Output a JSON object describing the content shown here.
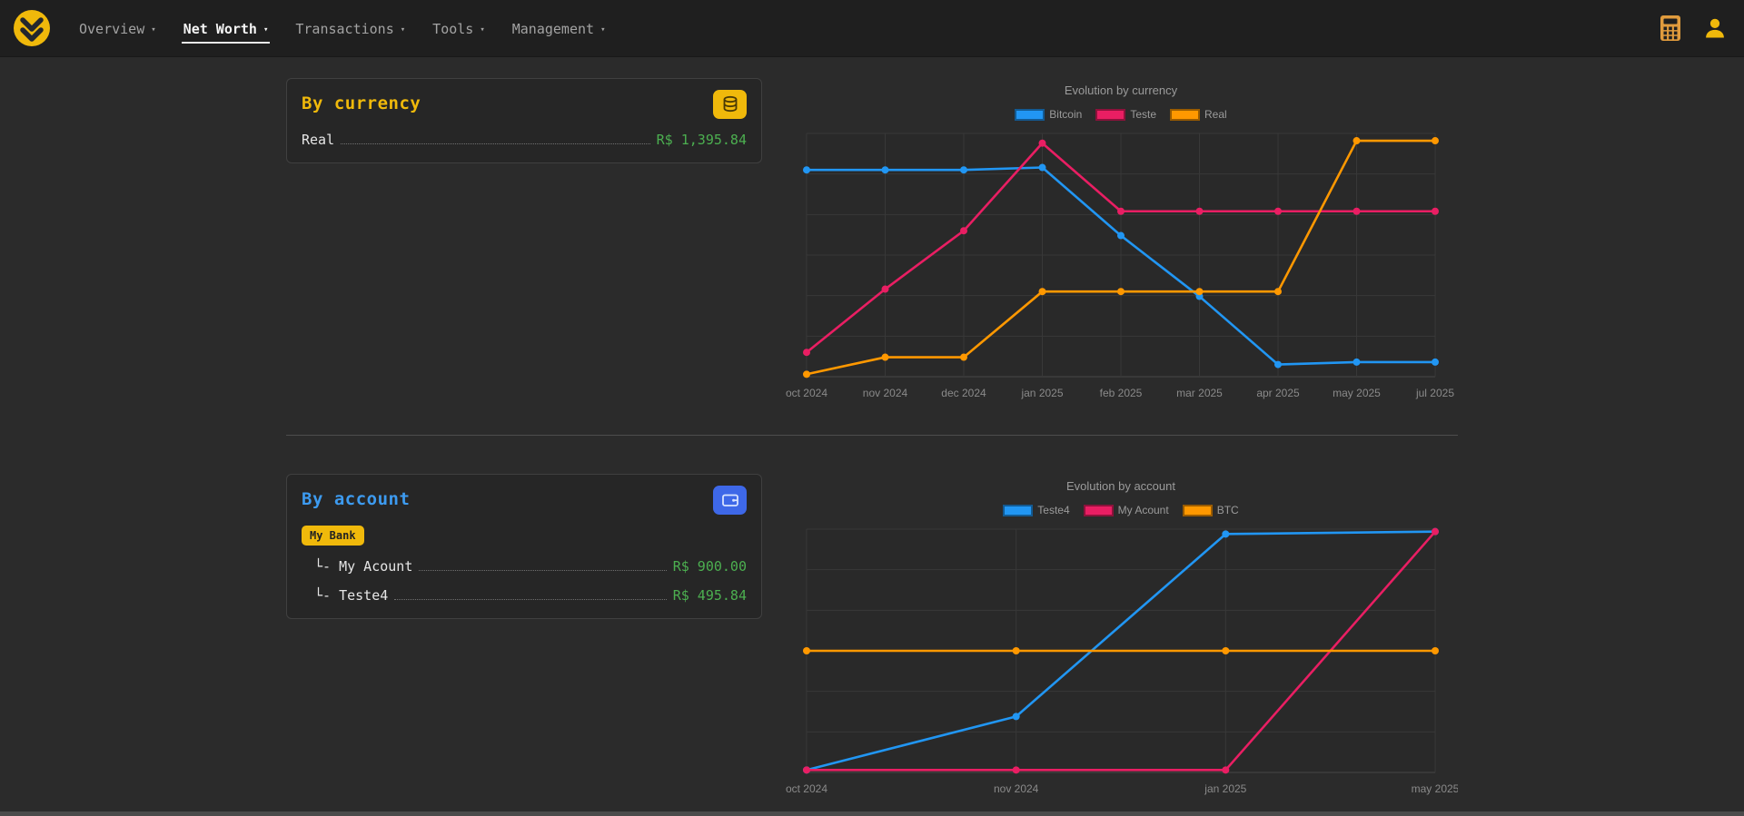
{
  "glyphs": {
    "caret": "▾"
  },
  "navbar": {
    "items": [
      {
        "label": "Overview",
        "active": false
      },
      {
        "label": "Net Worth",
        "active": true
      },
      {
        "label": "Transactions",
        "active": false
      },
      {
        "label": "Tools",
        "active": false
      },
      {
        "label": "Management",
        "active": false
      }
    ]
  },
  "cards": {
    "currency": {
      "title": "By currency",
      "icon": "coins-icon",
      "rows": [
        {
          "label": "Real",
          "value": "R$ 1,395.84"
        }
      ]
    },
    "account": {
      "title": "By account",
      "icon": "wallet-icon",
      "bank": "My Bank",
      "rows": [
        {
          "label": "└- My Acount",
          "value": "R$ 900.00"
        },
        {
          "label": "└- Teste4",
          "value": "R$ 495.84"
        }
      ]
    }
  },
  "chart_data": [
    {
      "type": "line",
      "title": "Evolution by currency",
      "x": [
        "oct 2024",
        "nov 2024",
        "dec 2024",
        "jan 2025",
        "feb 2025",
        "mar 2025",
        "apr 2025",
        "may 2025",
        "jul 2025"
      ],
      "series": [
        {
          "name": "Bitcoin",
          "color": "#2196f3",
          "values": [
            85,
            85,
            85,
            86,
            58,
            33,
            5,
            6,
            6
          ]
        },
        {
          "name": "Teste",
          "color": "#e91e63",
          "values": [
            10,
            36,
            60,
            96,
            68,
            68,
            68,
            68,
            68
          ]
        },
        {
          "name": "Real",
          "color": "#ff9800",
          "values": [
            1,
            8,
            8,
            35,
            35,
            35,
            35,
            97,
            97
          ]
        }
      ],
      "ylim": [
        0,
        100
      ],
      "y_ticks": [],
      "grid": true,
      "legend_position": "top"
    },
    {
      "type": "line",
      "title": "Evolution by account",
      "x": [
        "oct 2024",
        "nov 2024",
        "jan 2025",
        "may 2025"
      ],
      "series": [
        {
          "name": "Teste4",
          "color": "#2196f3",
          "values": [
            1,
            23,
            98,
            99
          ]
        },
        {
          "name": "My Acount",
          "color": "#e91e63",
          "values": [
            1,
            1,
            1,
            99
          ]
        },
        {
          "name": "BTC",
          "color": "#ff9800",
          "values": [
            50,
            50,
            50,
            50
          ]
        }
      ],
      "ylim": [
        0,
        100
      ],
      "y_ticks": [],
      "grid": true,
      "legend_position": "top"
    }
  ],
  "colors": {
    "accent_yellow": "#f0b90b",
    "accent_blue": "#3d9bf0",
    "value_green": "#4caf50",
    "bitcoin_blue": "#2196f3",
    "teste_pink": "#e91e63",
    "real_orange": "#ff9800",
    "navbar_bg": "#1f1f1f",
    "page_bg": "#2b2b2b",
    "card_bg": "#262626"
  }
}
